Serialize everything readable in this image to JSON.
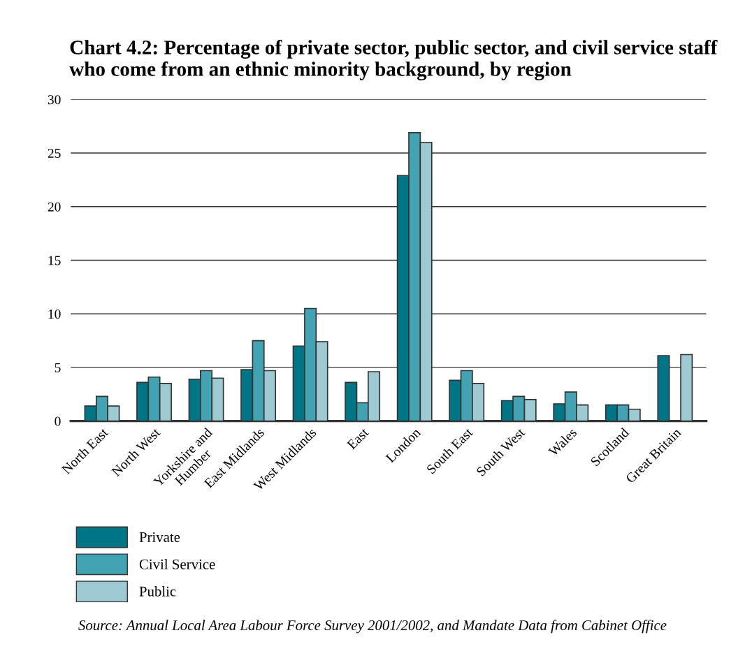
{
  "chart_data": {
    "type": "bar",
    "title": "Chart 4.2: Percentage of private sector, public sector, and civil service staff who come from an ethnic minority background, by region",
    "categories": [
      "North East",
      "North West",
      "Yorkshire and\nHumber",
      "East Midlands",
      "West Midlands",
      "East",
      "London",
      "South East",
      "South West",
      "Wales",
      "Scotland",
      "Great Britain"
    ],
    "series": [
      {
        "name": "Private",
        "color": "#007585",
        "values": [
          1.4,
          3.6,
          3.9,
          4.8,
          7.0,
          3.6,
          22.9,
          3.8,
          1.9,
          1.6,
          1.5,
          6.1
        ]
      },
      {
        "name": "Civil Service",
        "color": "#43a3b3",
        "values": [
          2.3,
          4.1,
          4.7,
          7.5,
          10.5,
          1.7,
          26.9,
          4.7,
          2.3,
          2.7,
          1.5,
          null
        ]
      },
      {
        "name": "Public",
        "color": "#9ecbd3",
        "values": [
          1.4,
          3.5,
          4.0,
          4.7,
          7.4,
          4.6,
          26.0,
          3.5,
          2.0,
          1.5,
          1.1,
          6.2
        ]
      }
    ],
    "ylim": [
      0,
      30
    ],
    "yticks": [
      0,
      5,
      10,
      15,
      20,
      25,
      30
    ],
    "grid": "y",
    "legend": "bottom left",
    "annotations": [
      "Source: Annual Local Area Labour Force Survey 2001/2002, and Mandate Data from Cabinet Office"
    ]
  }
}
